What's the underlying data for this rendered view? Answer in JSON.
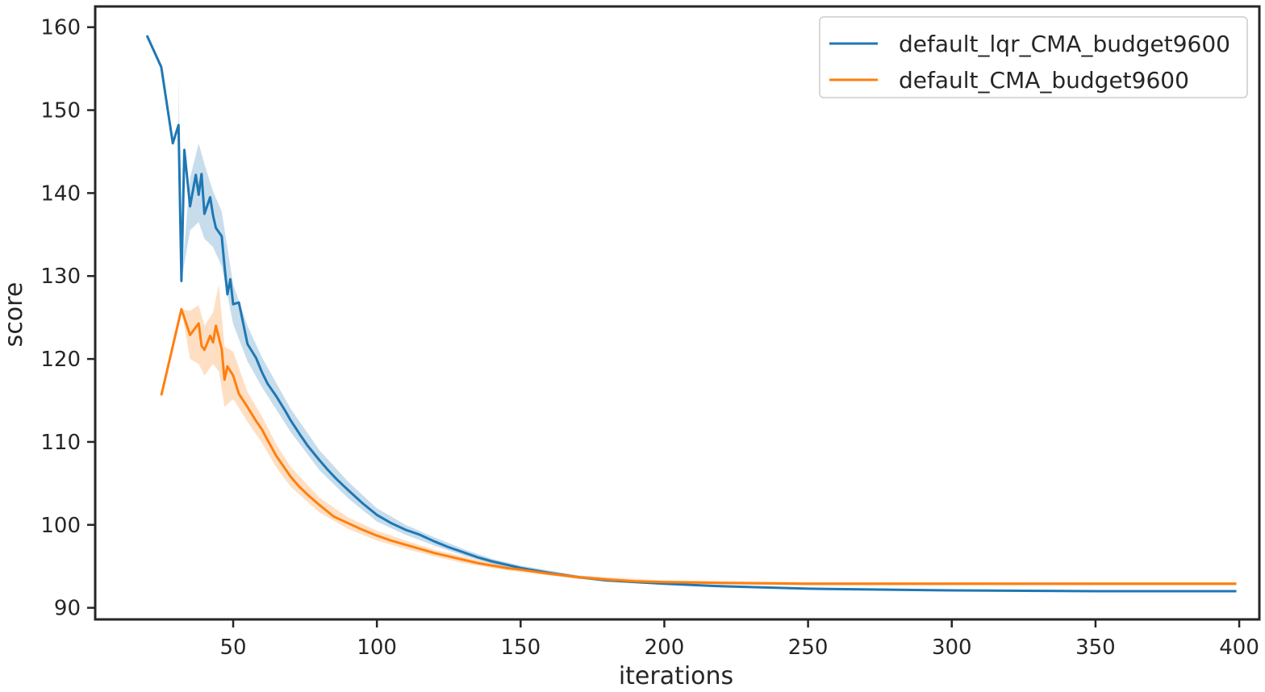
{
  "chart_data": {
    "type": "line",
    "title": "",
    "xlabel": "iterations",
    "ylabel": "score",
    "xlim": [
      2,
      407
    ],
    "ylim": [
      88.6,
      162.5
    ],
    "xticks": [
      50,
      100,
      150,
      200,
      250,
      300,
      350,
      400
    ],
    "yticks": [
      90,
      100,
      110,
      120,
      130,
      140,
      150,
      160
    ],
    "legend_position": "top-right",
    "series": [
      {
        "name": "default_lqr_CMA_budget9600",
        "color": "#1f77b4",
        "points": [
          [
            20,
            159
          ],
          [
            25,
            155.2
          ],
          [
            29,
            146
          ],
          [
            31,
            148.2
          ],
          [
            32,
            129.4
          ],
          [
            33,
            145.2
          ],
          [
            35,
            138.4
          ],
          [
            37,
            142.2
          ],
          [
            38,
            139.8
          ],
          [
            39,
            142.3
          ],
          [
            40,
            137.5
          ],
          [
            42,
            139.5
          ],
          [
            43,
            137.3
          ],
          [
            44,
            135.8
          ],
          [
            46,
            134.8
          ],
          [
            47,
            131.2
          ],
          [
            48,
            127.8
          ],
          [
            49,
            129.6
          ],
          [
            50,
            126.6
          ],
          [
            52,
            126.8
          ],
          [
            55,
            121.8
          ],
          [
            58,
            120.1
          ],
          [
            60,
            118.4
          ],
          [
            62,
            117.0
          ],
          [
            65,
            115.5
          ],
          [
            68,
            113.8
          ],
          [
            70,
            112.6
          ],
          [
            73,
            111.0
          ],
          [
            76,
            109.5
          ],
          [
            80,
            107.8
          ],
          [
            83,
            106.6
          ],
          [
            86,
            105.5
          ],
          [
            90,
            104.2
          ],
          [
            95,
            102.6
          ],
          [
            100,
            101.2
          ],
          [
            105,
            100.2
          ],
          [
            110,
            99.4
          ],
          [
            115,
            98.8
          ],
          [
            120,
            98.0
          ],
          [
            125,
            97.3
          ],
          [
            130,
            96.7
          ],
          [
            135,
            96.1
          ],
          [
            140,
            95.6
          ],
          [
            145,
            95.2
          ],
          [
            150,
            94.8
          ],
          [
            160,
            94.2
          ],
          [
            170,
            93.7
          ],
          [
            180,
            93.3
          ],
          [
            190,
            93.1
          ],
          [
            200,
            92.9
          ],
          [
            220,
            92.6
          ],
          [
            250,
            92.3
          ],
          [
            300,
            92.1
          ],
          [
            350,
            92.0
          ],
          [
            399,
            92.0
          ]
        ],
        "band": [
          [
            31,
            148.2,
            154.6
          ],
          [
            32,
            129.4,
            129.4
          ],
          [
            35,
            135.5,
            141.8
          ],
          [
            38,
            136.5,
            146.0
          ],
          [
            40,
            134.5,
            143.5
          ],
          [
            43,
            133.5,
            140.2
          ],
          [
            46,
            131.2,
            137.8
          ],
          [
            50,
            124.2,
            129.0
          ],
          [
            55,
            119.7,
            124.0
          ],
          [
            60,
            116.6,
            120.2
          ],
          [
            65,
            113.9,
            117.1
          ],
          [
            70,
            111.2,
            114.0
          ],
          [
            80,
            106.6,
            109.0
          ],
          [
            90,
            103.2,
            105.2
          ],
          [
            100,
            100.4,
            102.0
          ],
          [
            110,
            98.8,
            100.0
          ],
          [
            120,
            97.5,
            98.5
          ],
          [
            130,
            96.3,
            97.1
          ],
          [
            140,
            95.3,
            95.9
          ],
          [
            150,
            94.5,
            95.1
          ],
          [
            170,
            93.5,
            93.9
          ],
          [
            200,
            92.8,
            93.0
          ],
          [
            250,
            92.2,
            92.4
          ],
          [
            300,
            92.0,
            92.2
          ],
          [
            399,
            91.9,
            92.1
          ]
        ]
      },
      {
        "name": "default_CMA_budget9600",
        "color": "#ff7f0e",
        "points": [
          [
            25,
            115.6
          ],
          [
            32,
            126.0
          ],
          [
            35,
            122.9
          ],
          [
            38,
            124.3
          ],
          [
            39,
            121.6
          ],
          [
            40,
            121.1
          ],
          [
            42,
            122.8
          ],
          [
            43,
            122.0
          ],
          [
            44,
            124.0
          ],
          [
            46,
            121.2
          ],
          [
            47,
            117.5
          ],
          [
            48,
            119.1
          ],
          [
            50,
            118.0
          ],
          [
            52,
            115.8
          ],
          [
            55,
            114.2
          ],
          [
            58,
            112.5
          ],
          [
            60,
            111.5
          ],
          [
            62,
            110.2
          ],
          [
            65,
            108.3
          ],
          [
            68,
            106.8
          ],
          [
            70,
            105.8
          ],
          [
            73,
            104.6
          ],
          [
            76,
            103.6
          ],
          [
            80,
            102.4
          ],
          [
            85,
            101.0
          ],
          [
            90,
            100.2
          ],
          [
            95,
            99.4
          ],
          [
            100,
            98.7
          ],
          [
            105,
            98.1
          ],
          [
            110,
            97.6
          ],
          [
            115,
            97.1
          ],
          [
            120,
            96.6
          ],
          [
            125,
            96.2
          ],
          [
            130,
            95.8
          ],
          [
            135,
            95.4
          ],
          [
            140,
            95.1
          ],
          [
            145,
            94.8
          ],
          [
            150,
            94.6
          ],
          [
            160,
            94.1
          ],
          [
            170,
            93.7
          ],
          [
            180,
            93.4
          ],
          [
            190,
            93.2
          ],
          [
            200,
            93.1
          ],
          [
            220,
            93.0
          ],
          [
            250,
            92.9
          ],
          [
            300,
            92.9
          ],
          [
            350,
            92.9
          ],
          [
            399,
            92.9
          ]
        ],
        "band": [
          [
            32,
            126.0,
            126.0
          ],
          [
            35,
            120.0,
            125.8
          ],
          [
            38,
            119.4,
            126.5
          ],
          [
            40,
            118.0,
            124.0
          ],
          [
            43,
            119.4,
            125.6
          ],
          [
            45,
            118.5,
            129.0
          ],
          [
            47,
            114.2,
            121.5
          ],
          [
            50,
            115.2,
            120.9
          ],
          [
            55,
            112.4,
            116.0
          ],
          [
            60,
            109.9,
            113.1
          ],
          [
            65,
            106.9,
            109.7
          ],
          [
            70,
            104.6,
            107.0
          ],
          [
            80,
            101.5,
            103.3
          ],
          [
            90,
            99.5,
            100.9
          ],
          [
            100,
            98.1,
            99.3
          ],
          [
            110,
            97.1,
            98.1
          ],
          [
            120,
            96.2,
            97.0
          ],
          [
            130,
            95.4,
            96.2
          ],
          [
            140,
            94.8,
            95.4
          ],
          [
            150,
            94.3,
            94.9
          ],
          [
            170,
            93.5,
            93.9
          ],
          [
            200,
            92.9,
            93.3
          ],
          [
            250,
            92.7,
            93.1
          ],
          [
            300,
            92.7,
            93.1
          ],
          [
            399,
            92.7,
            93.1
          ]
        ]
      }
    ]
  }
}
